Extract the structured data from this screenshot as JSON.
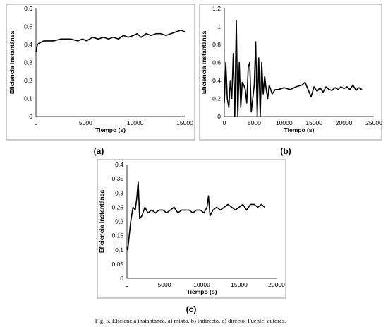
{
  "chart_data": [
    {
      "type": "line",
      "panel_label": "(a)",
      "xlabel": "Tiempo (s)",
      "ylabel": "Eficiencia instantánea",
      "xlim": [
        0,
        15000
      ],
      "ylim": [
        0,
        0.6
      ],
      "xticks": [
        0,
        5000,
        10000,
        15000
      ],
      "yticks": [
        0,
        0.1,
        0.2,
        0.3,
        0.4,
        0.5,
        0.6
      ],
      "ytick_labels": [
        "0",
        "0,1",
        "0,2",
        "0,3",
        "0,4",
        "0,5",
        "0,6"
      ],
      "grid": false,
      "series": [
        {
          "x": [
            0,
            150,
            400,
            800,
            1200,
            1800,
            2500,
            3500,
            4200,
            4700,
            5100,
            5700,
            6300,
            6800,
            7300,
            7800,
            8300,
            8800,
            9300,
            9800,
            10200,
            10600,
            11100,
            11600,
            12100,
            12600,
            13100,
            13600,
            14100,
            14600,
            15000
          ],
          "y": [
            0.36,
            0.4,
            0.41,
            0.42,
            0.42,
            0.42,
            0.43,
            0.43,
            0.42,
            0.43,
            0.42,
            0.44,
            0.43,
            0.44,
            0.43,
            0.44,
            0.43,
            0.45,
            0.44,
            0.45,
            0.46,
            0.44,
            0.46,
            0.45,
            0.46,
            0.46,
            0.45,
            0.46,
            0.47,
            0.48,
            0.47
          ]
        }
      ]
    },
    {
      "type": "line",
      "panel_label": "(b)",
      "xlabel": "Tiempo (s)",
      "ylabel": "Eficiencia instantánea",
      "xlim": [
        0,
        25000
      ],
      "ylim": [
        0,
        1.2
      ],
      "xticks": [
        0,
        5000,
        10000,
        15000,
        20000,
        25000
      ],
      "yticks": [
        0,
        0.2,
        0.4,
        0.6,
        0.8,
        1.0,
        1.2
      ],
      "ytick_labels": [
        "0",
        "0,2",
        "0,4",
        "0,6",
        "0,8",
        "1",
        "1,2"
      ],
      "grid": false,
      "series": [
        {
          "x": [
            0,
            250,
            500,
            750,
            1000,
            1250,
            1500,
            1750,
            2000,
            2250,
            2500,
            2750,
            3000,
            3250,
            3500,
            3750,
            4000,
            4250,
            4500,
            4750,
            5000,
            5250,
            5500,
            5750,
            6000,
            6250,
            6500,
            6750,
            7000,
            7250,
            7500,
            8000,
            8500,
            9000,
            10000,
            11000,
            12000,
            13000,
            13500,
            14000,
            14500,
            15000,
            15500,
            16000,
            16500,
            17000,
            17500,
            18000,
            18500,
            19000,
            19500,
            20000,
            20500,
            21000,
            21500,
            22000,
            22500,
            23000
          ],
          "y": [
            0.15,
            0.6,
            0.2,
            0.1,
            0.4,
            0.2,
            0.7,
            0.0,
            1.07,
            0.0,
            0.6,
            0.1,
            0.38,
            0.35,
            0.3,
            0.15,
            0.55,
            0.6,
            0.05,
            0.2,
            0.35,
            0.83,
            0.0,
            0.65,
            0.0,
            0.6,
            0.25,
            0.45,
            0.3,
            0.2,
            0.35,
            0.25,
            0.3,
            0.3,
            0.32,
            0.3,
            0.33,
            0.35,
            0.38,
            0.3,
            0.22,
            0.33,
            0.28,
            0.32,
            0.27,
            0.33,
            0.3,
            0.29,
            0.32,
            0.3,
            0.33,
            0.31,
            0.33,
            0.3,
            0.35,
            0.29,
            0.32,
            0.3
          ]
        }
      ]
    },
    {
      "type": "line",
      "panel_label": "(c)",
      "xlabel": "Tiempo (s)",
      "ylabel": "Eficiencia Instantánea",
      "xlim": [
        0,
        20000
      ],
      "ylim": [
        0,
        0.4
      ],
      "xticks": [
        0,
        5000,
        10000,
        15000,
        20000
      ],
      "yticks": [
        0,
        0.05,
        0.1,
        0.15,
        0.2,
        0.25,
        0.3,
        0.35,
        0.4
      ],
      "ytick_labels": [
        "0",
        "0,05",
        "0,1",
        "0,15",
        "0,2",
        "0,25",
        "0,3",
        "0,35",
        "0,4"
      ],
      "grid": false,
      "series": [
        {
          "x": [
            0,
            100,
            300,
            500,
            800,
            1100,
            1300,
            1500,
            1700,
            2000,
            2400,
            2800,
            3300,
            3800,
            4300,
            4800,
            5300,
            5800,
            6300,
            6800,
            7300,
            7800,
            8300,
            8800,
            9300,
            9800,
            10300,
            10700,
            10900,
            11100,
            11500,
            12000,
            12500,
            13000,
            13500,
            14000,
            14500,
            15000,
            15500,
            16000,
            16500,
            17000,
            17500,
            18000,
            18400
          ],
          "y": [
            0.11,
            0.1,
            0.15,
            0.2,
            0.25,
            0.24,
            0.28,
            0.34,
            0.21,
            0.22,
            0.25,
            0.23,
            0.24,
            0.23,
            0.24,
            0.24,
            0.23,
            0.24,
            0.25,
            0.23,
            0.24,
            0.24,
            0.24,
            0.23,
            0.24,
            0.24,
            0.23,
            0.25,
            0.29,
            0.22,
            0.24,
            0.25,
            0.24,
            0.25,
            0.26,
            0.25,
            0.24,
            0.25,
            0.26,
            0.24,
            0.26,
            0.26,
            0.25,
            0.26,
            0.25
          ]
        }
      ]
    }
  ],
  "caption": "Fig. 5. Eficiencia instantánea. a) mixto. b) indirecto. c) directo. Fuente: autores."
}
